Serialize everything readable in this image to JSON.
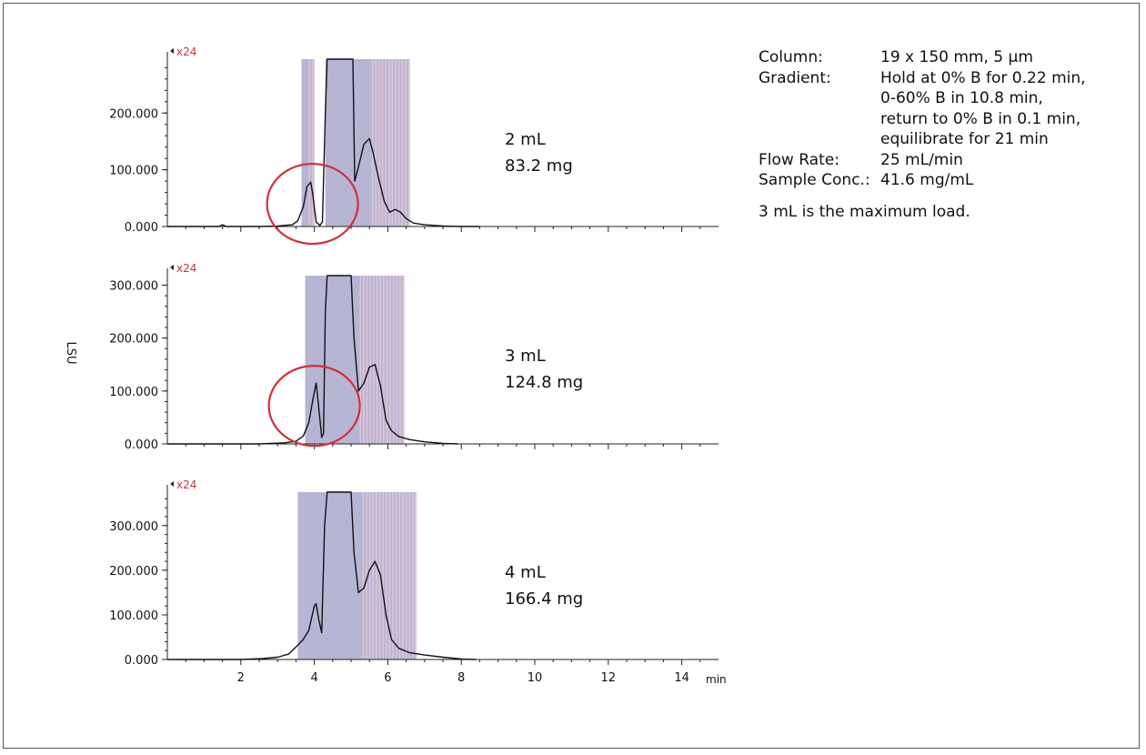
{
  "info": {
    "column_label": "Column:",
    "column_value": "19 x 150 mm, 5 µm",
    "gradient_label": "Gradient:",
    "gradient_lines": [
      "Hold at 0% B for 0.22 min,",
      "0-60% B in 10.8 min,",
      "return to 0% B in 0.1 min,",
      "equilibrate for 21 min"
    ],
    "flow_label": "Flow Rate:",
    "flow_value": "25 mL/min",
    "conc_label": "Sample Conc.:",
    "conc_value": "41.6 mg/mL",
    "note": "3 mL is the maximum load."
  },
  "colors": {
    "trace": "#111111",
    "fraction_fill": "#b7b5d4",
    "fraction_stripe": "#e6c8d4",
    "circle": "#d32f36",
    "zoom_label": "#c0393f"
  },
  "chart_data": [
    {
      "type": "line",
      "ylabel": "LSU",
      "xlabel": "min",
      "zoom_label": "x24",
      "x_ticks": [
        2,
        4,
        6,
        8,
        10,
        12,
        14
      ],
      "xlim": [
        0,
        15
      ],
      "ylim": [
        0,
        295
      ],
      "y_ticks": [
        0,
        100,
        200
      ],
      "y_tick_labels": [
        "0.000",
        "100.000",
        "200.000"
      ],
      "annotation": [
        "2 mL",
        "83.2 mg"
      ],
      "circle_center": [
        3.95,
        40
      ],
      "fractions": [
        [
          3.65,
          4.0
        ],
        [
          4.3,
          6.6
        ]
      ],
      "series": [
        {
          "x": [
            0,
            1.2,
            1.4,
            1.5,
            1.6,
            2.5,
            3.0,
            3.4,
            3.55,
            3.7,
            3.8,
            3.9,
            3.95,
            4.05,
            4.15,
            4.22,
            4.3,
            4.35,
            5.05,
            5.1,
            5.2,
            5.35,
            5.5,
            5.6,
            5.75,
            5.9,
            6.05,
            6.2,
            6.35,
            6.5,
            6.7,
            7.0,
            7.5,
            8.0,
            8.5
          ],
          "y": [
            0,
            0,
            0,
            3,
            0,
            0,
            1,
            3,
            10,
            35,
            70,
            78,
            60,
            8,
            2,
            8,
            200,
            295,
            295,
            80,
            105,
            145,
            155,
            130,
            85,
            45,
            25,
            30,
            25,
            14,
            6,
            3,
            1,
            0,
            0
          ]
        }
      ]
    },
    {
      "type": "line",
      "ylabel": "LSU",
      "xlabel": "min",
      "zoom_label": "x24",
      "x_ticks": [
        2,
        4,
        6,
        8,
        10,
        12,
        14
      ],
      "xlim": [
        0,
        15
      ],
      "ylim": [
        0,
        318
      ],
      "y_ticks": [
        0,
        100,
        200,
        300
      ],
      "y_tick_labels": [
        "0.000",
        "100.000",
        "200.000",
        "300.000"
      ],
      "annotation": [
        "3 mL",
        "124.8 mg"
      ],
      "circle_center": [
        4.0,
        72
      ],
      "fractions": [
        [
          3.75,
          6.45
        ]
      ],
      "series": [
        {
          "x": [
            0,
            2.5,
            3.2,
            3.5,
            3.7,
            3.85,
            3.95,
            4.05,
            4.12,
            4.2,
            4.25,
            4.3,
            4.35,
            5.0,
            5.08,
            5.2,
            5.35,
            5.5,
            5.65,
            5.8,
            5.95,
            6.1,
            6.3,
            6.6,
            7.0,
            7.5,
            7.9
          ],
          "y": [
            0,
            0,
            2,
            5,
            15,
            40,
            80,
            115,
            70,
            12,
            20,
            250,
            318,
            318,
            200,
            100,
            115,
            145,
            150,
            110,
            45,
            25,
            14,
            8,
            4,
            1,
            0
          ]
        }
      ]
    },
    {
      "type": "line",
      "ylabel": "LSU",
      "xlabel": "min",
      "zoom_label": "x24",
      "x_ticks": [
        2,
        4,
        6,
        8,
        10,
        12,
        14
      ],
      "xlim": [
        0,
        15
      ],
      "ylim": [
        0,
        375
      ],
      "y_ticks": [
        0,
        100,
        200,
        300
      ],
      "y_tick_labels": [
        "0.000",
        "100.000",
        "200.000",
        "300.000"
      ],
      "annotation": [
        "4 mL",
        "166.4 mg"
      ],
      "fractions": [
        [
          3.55,
          6.75
        ]
      ],
      "series": [
        {
          "x": [
            0,
            2.0,
            2.6,
            3.0,
            3.3,
            3.5,
            3.7,
            3.85,
            4.0,
            4.05,
            4.12,
            4.2,
            4.28,
            4.35,
            5.0,
            5.08,
            5.2,
            5.35,
            5.5,
            5.65,
            5.8,
            5.95,
            6.1,
            6.3,
            6.6,
            7.0,
            7.5,
            8.0,
            8.4
          ],
          "y": [
            0,
            0,
            2,
            5,
            12,
            28,
            45,
            65,
            120,
            125,
            90,
            60,
            300,
            375,
            375,
            240,
            150,
            160,
            200,
            220,
            190,
            100,
            45,
            25,
            15,
            10,
            5,
            1,
            0
          ]
        }
      ]
    }
  ]
}
